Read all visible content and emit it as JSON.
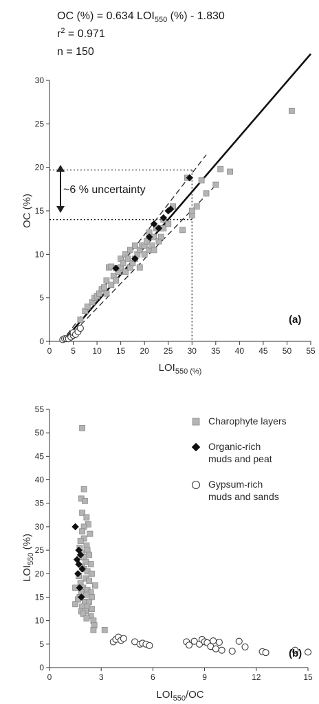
{
  "header": {
    "equation_lhs": "OC (%) = 0.634 LOI",
    "equation_sub": "550",
    "equation_rhs": " (%) - 1.830",
    "r2_r": "r",
    "r2_sup": "2",
    "r2_val": " = 0.971",
    "n_text": "n = 150"
  },
  "colors": {
    "charophyte": "#b4b4b4",
    "organic": "#111111",
    "gypsum": "#ffffff",
    "stroke": "#3a3a3a"
  },
  "chart_data": [
    {
      "type": "scatter",
      "panel_label": "(a)",
      "xlabel_main": "LOI",
      "xlabel_sub": "550 (%)",
      "ylabel": "OC (%)",
      "xlim": [
        0,
        55
      ],
      "ylim": [
        0,
        30
      ],
      "xticks": [
        0,
        5,
        10,
        15,
        20,
        25,
        30,
        35,
        40,
        45,
        50,
        55
      ],
      "yticks": [
        0,
        5,
        10,
        15,
        20,
        25,
        30
      ],
      "regression": {
        "slope": 0.634,
        "intercept": -1.83,
        "x_range": [
          2.9,
          55
        ]
      },
      "uncertainty_bounds": [
        {
          "x_range": [
            2.5,
            33
          ],
          "slope": 0.705,
          "intercept": -1.83
        },
        {
          "x_range": [
            4,
            35
          ],
          "slope": 0.565,
          "intercept": -1.83
        }
      ],
      "guides": {
        "x": 30,
        "y_low": 14,
        "y_high": 19.7
      },
      "uncertainty_label": "~6 % uncertainty",
      "series": [
        {
          "name": "Charophyte layers",
          "marker": "square",
          "points": [
            [
              6.5,
              2.5
            ],
            [
              7.5,
              3.5
            ],
            [
              8,
              4
            ],
            [
              9,
              4.5
            ],
            [
              9.5,
              5
            ],
            [
              10,
              5.2
            ],
            [
              10.5,
              5.5
            ],
            [
              11,
              6
            ],
            [
              11.5,
              6.2
            ],
            [
              12,
              5.5
            ],
            [
              12,
              7
            ],
            [
              12.5,
              8.5
            ],
            [
              13,
              6.5
            ],
            [
              13,
              8.6
            ],
            [
              13.5,
              7.5
            ],
            [
              14,
              7
            ],
            [
              14,
              8.4
            ],
            [
              14.5,
              8
            ],
            [
              15,
              8.5
            ],
            [
              15,
              9.5
            ],
            [
              15.5,
              9
            ],
            [
              16,
              8
            ],
            [
              16,
              10
            ],
            [
              16.5,
              9.5
            ],
            [
              17,
              8.5
            ],
            [
              17,
              10.5
            ],
            [
              17.5,
              9
            ],
            [
              18,
              9.5
            ],
            [
              18,
              11
            ],
            [
              18.5,
              10
            ],
            [
              19,
              8.5
            ],
            [
              19,
              10.5
            ],
            [
              19.5,
              11
            ],
            [
              20,
              10
            ],
            [
              20,
              11
            ],
            [
              20.5,
              11.5
            ],
            [
              21,
              10.5
            ],
            [
              21,
              12.5
            ],
            [
              21.5,
              11
            ],
            [
              22,
              10.5
            ],
            [
              22,
              12
            ],
            [
              22.5,
              13
            ],
            [
              23,
              11.5
            ],
            [
              23,
              13
            ],
            [
              23.5,
              12
            ],
            [
              24,
              13
            ],
            [
              24,
              14
            ],
            [
              25,
              13.5
            ],
            [
              26,
              15.5
            ],
            [
              28,
              12.8
            ],
            [
              29,
              18.8
            ],
            [
              30,
              14.5
            ],
            [
              30,
              15
            ],
            [
              31,
              15.5
            ],
            [
              32,
              18.5
            ],
            [
              33,
              17
            ],
            [
              35,
              18
            ],
            [
              36,
              19.8
            ],
            [
              38,
              19.5
            ],
            [
              51,
              26.5
            ]
          ]
        },
        {
          "name": "Organic-rich muds and peat",
          "marker": "diamond",
          "points": [
            [
              14,
              8.4
            ],
            [
              18,
              9.5
            ],
            [
              21,
              12
            ],
            [
              22,
              13.5
            ],
            [
              23,
              13
            ],
            [
              24,
              14.2
            ],
            [
              25,
              15
            ],
            [
              25.5,
              15.2
            ],
            [
              29.5,
              18.8
            ]
          ]
        },
        {
          "name": "Gypsum-rich muds and sands",
          "marker": "circle",
          "points": [
            [
              2.8,
              0.2
            ],
            [
              3.2,
              0.3
            ],
            [
              3.6,
              0.3
            ],
            [
              4,
              0.3
            ],
            [
              4.5,
              0.5
            ],
            [
              5,
              0.7
            ],
            [
              5,
              1
            ],
            [
              5.5,
              0.8
            ],
            [
              6,
              1.1
            ],
            [
              6.5,
              1.5
            ]
          ]
        }
      ]
    },
    {
      "type": "scatter",
      "panel_label": "(b)",
      "xlabel_main": "LOI",
      "xlabel_sub": "550",
      "xlabel_tail": "/OC",
      "ylabel_main": "LOI",
      "ylabel_sub": "550",
      "ylabel_tail": " (%)",
      "xlim": [
        0,
        15
      ],
      "ylim": [
        0,
        55
      ],
      "xticks": [
        0,
        3,
        6,
        9,
        12,
        15
      ],
      "yticks": [
        0,
        5,
        10,
        15,
        20,
        25,
        30,
        35,
        40,
        45,
        50,
        55
      ],
      "series": [
        {
          "name": "Charophyte layers",
          "marker": "square",
          "points": [
            [
              1.9,
              51
            ],
            [
              2.0,
              38
            ],
            [
              1.85,
              36
            ],
            [
              2.05,
              35.5
            ],
            [
              1.9,
              33
            ],
            [
              2.15,
              32
            ],
            [
              2.25,
              30.5
            ],
            [
              2.0,
              30
            ],
            [
              1.9,
              29
            ],
            [
              2.35,
              28.5
            ],
            [
              2.0,
              27.5
            ],
            [
              1.8,
              27
            ],
            [
              2.15,
              26
            ],
            [
              1.75,
              25.5
            ],
            [
              2.2,
              25
            ],
            [
              1.85,
              24.5
            ],
            [
              2.3,
              24
            ],
            [
              2.0,
              23.5
            ],
            [
              2.1,
              22.5
            ],
            [
              2.4,
              22
            ],
            [
              1.9,
              21.5
            ],
            [
              2.0,
              21
            ],
            [
              2.2,
              20.5
            ],
            [
              2.45,
              20
            ],
            [
              1.7,
              19.5
            ],
            [
              2.1,
              19
            ],
            [
              2.3,
              18.5
            ],
            [
              1.8,
              18
            ],
            [
              2.65,
              17.5
            ],
            [
              1.5,
              17
            ],
            [
              1.95,
              17
            ],
            [
              2.2,
              16.5
            ],
            [
              1.85,
              16
            ],
            [
              2.4,
              16
            ],
            [
              2.15,
              15.5
            ],
            [
              1.75,
              15
            ],
            [
              2.45,
              15
            ],
            [
              1.65,
              14.5
            ],
            [
              2.05,
              14
            ],
            [
              2.3,
              14
            ],
            [
              1.5,
              13.5
            ],
            [
              1.9,
              13
            ],
            [
              2.2,
              13
            ],
            [
              2.45,
              12.5
            ],
            [
              1.85,
              12
            ],
            [
              2.1,
              12
            ],
            [
              1.95,
              11.5
            ],
            [
              2.4,
              11
            ],
            [
              2.15,
              10.5
            ],
            [
              2.55,
              10
            ],
            [
              2.6,
              9
            ],
            [
              2.55,
              8
            ],
            [
              3.2,
              8
            ]
          ]
        },
        {
          "name": "Organic-rich muds and peat",
          "marker": "diamond",
          "points": [
            [
              1.5,
              30
            ],
            [
              1.7,
              25
            ],
            [
              1.8,
              24
            ],
            [
              1.6,
              23
            ],
            [
              1.7,
              22
            ],
            [
              1.9,
              21
            ],
            [
              1.65,
              20
            ],
            [
              1.75,
              17
            ],
            [
              1.85,
              15
            ]
          ]
        },
        {
          "name": "Gypsum-rich muds and sands",
          "marker": "circle",
          "points": [
            [
              3.7,
              5.5
            ],
            [
              3.85,
              6
            ],
            [
              4.0,
              6.5
            ],
            [
              4.15,
              5.8
            ],
            [
              4.3,
              6.2
            ],
            [
              4.95,
              5.5
            ],
            [
              5.25,
              5
            ],
            [
              5.4,
              5.2
            ],
            [
              5.6,
              5
            ],
            [
              5.8,
              4.7
            ],
            [
              7.95,
              5.5
            ],
            [
              8.1,
              4.8
            ],
            [
              8.4,
              5.6
            ],
            [
              8.7,
              5
            ],
            [
              8.85,
              6
            ],
            [
              9.0,
              5.5
            ],
            [
              9.15,
              5.3
            ],
            [
              9.35,
              4.5
            ],
            [
              9.5,
              5.7
            ],
            [
              9.65,
              4
            ],
            [
              9.85,
              5.4
            ],
            [
              10.0,
              3.7
            ],
            [
              10.6,
              3.5
            ],
            [
              11.0,
              5.6
            ],
            [
              11.35,
              4.4
            ],
            [
              12.35,
              3.4
            ],
            [
              12.55,
              3.2
            ],
            [
              14.25,
              3.7
            ],
            [
              15.0,
              3.3
            ]
          ]
        }
      ],
      "legend": {
        "placement": "top-right",
        "entries": [
          {
            "lines": [
              "Charophyte layers"
            ],
            "marker": "square"
          },
          {
            "lines": [
              "Organic-rich",
              "muds and peat"
            ],
            "marker": "diamond"
          },
          {
            "lines": [
              "Gypsum-rich",
              "muds and sands"
            ],
            "marker": "circle"
          }
        ]
      }
    }
  ]
}
